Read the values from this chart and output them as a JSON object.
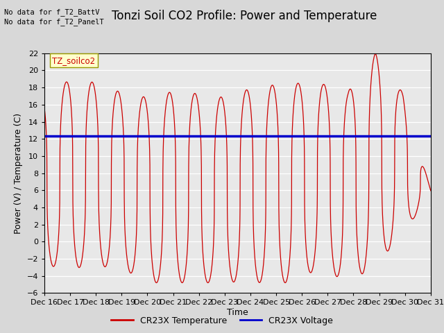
{
  "title": "Tonzi Soil CO2 Profile: Power and Temperature",
  "ylabel": "Power (V) / Temperature (C)",
  "xlabel": "Time",
  "ylim": [
    -6,
    22
  ],
  "yticks": [
    -6,
    -4,
    -2,
    0,
    2,
    4,
    6,
    8,
    10,
    12,
    14,
    16,
    18,
    20,
    22
  ],
  "bg_color": "#d8d8d8",
  "plot_bg_color": "#e8e8e8",
  "text_above": [
    "No data for f_T2_BattV",
    "No data for f_T2_PanelT"
  ],
  "legend_label_box": "TZ_soilco2",
  "temp_color": "#cc0000",
  "volt_color": "#0000cc",
  "volt_value": 12.35,
  "n_days": 15,
  "xtick_labels": [
    "Dec 16",
    "Dec 17",
    "Dec 18",
    "Dec 19",
    "Dec 20",
    "Dec 21",
    "Dec 22",
    "Dec 23",
    "Dec 24",
    "Dec 25",
    "Dec 26",
    "Dec 27",
    "Dec 28",
    "Dec 29",
    "Dec 30",
    "Dec 31"
  ],
  "legend_temp_label": "CR23X Temperature",
  "legend_volt_label": "CR23X Voltage",
  "title_fontsize": 12,
  "axis_fontsize": 9,
  "tick_fontsize": 8,
  "day_peaks": [
    17.3,
    19.0,
    18.5,
    17.1,
    16.8,
    18.0,
    16.5,
    17.5,
    18.2,
    18.5,
    18.5,
    17.5,
    22.0,
    17.3,
    6.0
  ],
  "day_troughs": [
    -2.8,
    -3.1,
    -2.8,
    -3.5,
    -4.8,
    -4.8,
    -4.8,
    -4.7,
    -4.8,
    -4.8,
    -3.0,
    -4.8,
    -2.8,
    1.0,
    5.5
  ],
  "peak_phase": 0.35
}
